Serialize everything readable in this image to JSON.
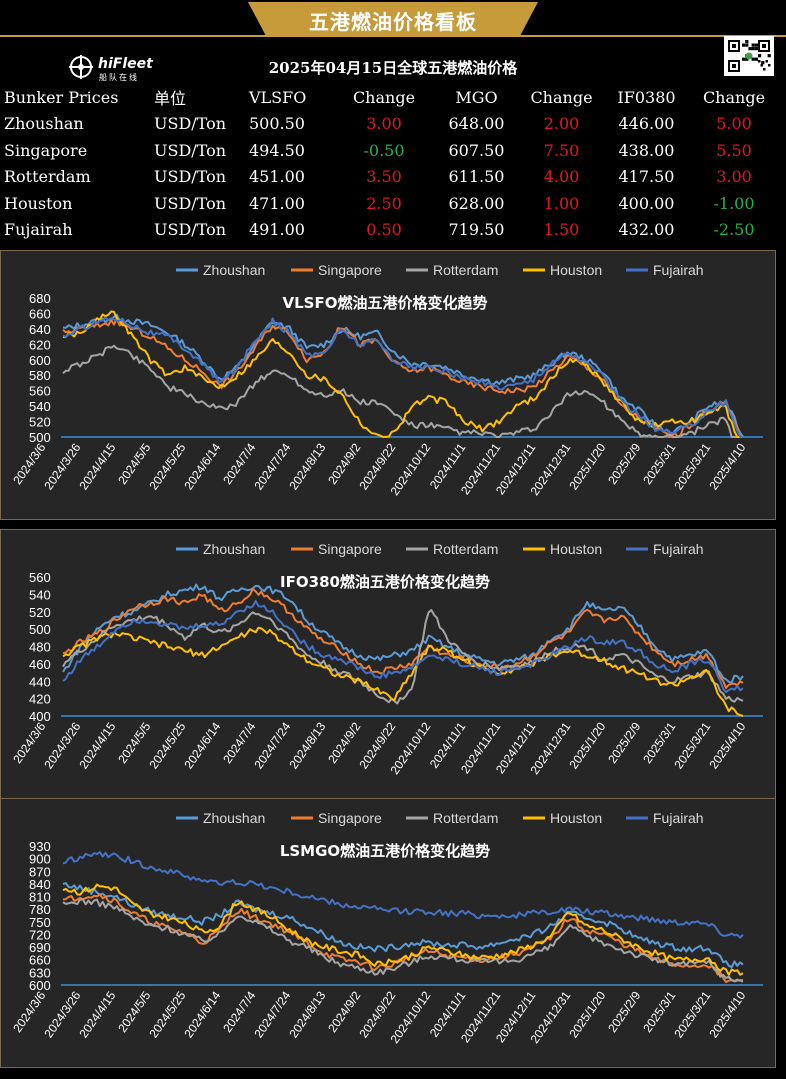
{
  "banner": {
    "title": "五港燃油价格看板",
    "color": "#c79a3a"
  },
  "logo": {
    "name": "hiFleet",
    "subname": "船队在线"
  },
  "subtitle": "2025年04月15日全球五港燃油价格",
  "table": {
    "headers": [
      "Bunker Prices",
      "单位",
      "VLSFO",
      "Change",
      "MGO",
      "Change",
      "IF0380",
      "Change"
    ],
    "rows": [
      {
        "port": "Zhoushan",
        "unit": "USD/Ton",
        "vlsfo": "500.50",
        "vlsfo_chg": "3.00",
        "mgo": "648.00",
        "mgo_chg": "2.00",
        "ifo": "446.00",
        "ifo_chg": "5.00"
      },
      {
        "port": "Singapore",
        "unit": "USD/Ton",
        "vlsfo": "494.50",
        "vlsfo_chg": "-0.50",
        "mgo": "607.50",
        "mgo_chg": "7.50",
        "ifo": "438.00",
        "ifo_chg": "5.50"
      },
      {
        "port": "Rotterdam",
        "unit": "USD/Ton",
        "vlsfo": "451.00",
        "vlsfo_chg": "3.50",
        "mgo": "611.50",
        "mgo_chg": "4.00",
        "ifo": "417.50",
        "ifo_chg": "3.00"
      },
      {
        "port": "Houston",
        "unit": "USD/Ton",
        "vlsfo": "471.00",
        "vlsfo_chg": "2.50",
        "mgo": "628.00",
        "mgo_chg": "1.00",
        "ifo": "400.00",
        "ifo_chg": "-1.00"
      },
      {
        "port": "Fujairah",
        "unit": "USD/Ton",
        "vlsfo": "491.00",
        "vlsfo_chg": "0.50",
        "mgo": "719.50",
        "mgo_chg": "1.50",
        "ifo": "432.00",
        "ifo_chg": "-2.50"
      }
    ],
    "colors": {
      "up": "#e8141d",
      "down": "#21b24b"
    }
  },
  "chart_data": [
    {
      "type": "line",
      "title": "VLSFO燃油五港价格变化趋势",
      "x_ticks": [
        "2024/3/6",
        "2024/3/26",
        "2024/4/15",
        "2024/5/5",
        "2024/5/25",
        "2024/6/14",
        "2024/7/4",
        "2024/7/24",
        "2024/8/13",
        "2024/9/2",
        "2024/9/22",
        "2024/10/12",
        "2024/11/1",
        "2024/11/21",
        "2024/12/11",
        "2024/12/31",
        "2025/1/20",
        "2025/2/9",
        "2025/3/1",
        "2025/3/21",
        "2025/4/10"
      ],
      "y_ticks": [
        500,
        520,
        540,
        560,
        580,
        600,
        620,
        640,
        660,
        680
      ],
      "ylim": [
        500,
        680
      ],
      "legend_position": "top",
      "series": [
        {
          "name": "Zhoushan",
          "color": "#5b9bd5",
          "values": [
            640,
            645,
            650,
            655,
            650,
            645,
            635,
            620,
            600,
            575,
            590,
            620,
            650,
            640,
            615,
            620,
            640,
            630,
            635,
            610,
            595,
            595,
            590,
            580,
            575,
            570,
            575,
            580,
            595,
            610,
            600,
            585,
            550,
            535,
            515,
            505,
            520,
            540,
            545,
            500.5
          ]
        },
        {
          "name": "Singapore",
          "color": "#ed7d31",
          "values": [
            635,
            640,
            645,
            650,
            640,
            630,
            615,
            600,
            585,
            565,
            585,
            615,
            645,
            635,
            600,
            610,
            645,
            620,
            625,
            595,
            585,
            590,
            580,
            570,
            565,
            560,
            560,
            565,
            585,
            605,
            590,
            575,
            540,
            525,
            510,
            500,
            515,
            535,
            545,
            494.5
          ]
        },
        {
          "name": "Rotterdam",
          "color": "#a5a5a5",
          "values": [
            585,
            595,
            605,
            620,
            605,
            590,
            565,
            555,
            545,
            535,
            545,
            570,
            585,
            580,
            560,
            555,
            560,
            545,
            545,
            530,
            515,
            515,
            510,
            505,
            505,
            500,
            505,
            510,
            530,
            555,
            560,
            545,
            520,
            505,
            500,
            500,
            505,
            515,
            525,
            451
          ]
        },
        {
          "name": "Houston",
          "color": "#ffc000",
          "values": [
            630,
            635,
            655,
            660,
            630,
            600,
            580,
            590,
            575,
            565,
            580,
            600,
            625,
            610,
            580,
            575,
            555,
            520,
            500,
            505,
            540,
            550,
            545,
            520,
            510,
            520,
            540,
            550,
            575,
            600,
            595,
            570,
            545,
            520,
            515,
            520,
            520,
            530,
            540,
            471
          ]
        },
        {
          "name": "Fujairah",
          "color": "#4472c4",
          "values": [
            630,
            640,
            650,
            655,
            645,
            635,
            630,
            615,
            595,
            570,
            590,
            625,
            650,
            635,
            605,
            610,
            640,
            620,
            625,
            600,
            590,
            590,
            585,
            575,
            570,
            565,
            568,
            575,
            595,
            610,
            595,
            580,
            545,
            530,
            510,
            505,
            515,
            535,
            545,
            491
          ]
        }
      ]
    },
    {
      "type": "line",
      "title": "IFO380燃油五港价格变化趋势",
      "x_ticks": [
        "2024/3/6",
        "2024/3/26",
        "2024/4/15",
        "2024/5/5",
        "2024/5/25",
        "2024/6/14",
        "2024/7/4",
        "2024/7/24",
        "2024/8/13",
        "2024/9/2",
        "2024/9/22",
        "2024/10/12",
        "2024/11/1",
        "2024/11/21",
        "2024/12/11",
        "2024/12/31",
        "2025/1/20",
        "2025/2/9",
        "2025/3/1",
        "2025/3/21",
        "2025/4/10"
      ],
      "y_ticks": [
        400,
        420,
        440,
        460,
        480,
        500,
        520,
        540,
        560
      ],
      "ylim": [
        400,
        560
      ],
      "legend_position": "top",
      "series": [
        {
          "name": "Zhoushan",
          "color": "#5b9bd5",
          "values": [
            450,
            480,
            500,
            515,
            520,
            530,
            540,
            545,
            550,
            535,
            545,
            550,
            545,
            535,
            510,
            495,
            480,
            470,
            465,
            470,
            475,
            490,
            480,
            470,
            465,
            460,
            465,
            470,
            490,
            500,
            530,
            520,
            525,
            505,
            480,
            465,
            470,
            475,
            440,
            446
          ]
        },
        {
          "name": "Singapore",
          "color": "#ed7d31",
          "values": [
            470,
            485,
            495,
            510,
            525,
            530,
            535,
            530,
            540,
            520,
            530,
            545,
            535,
            520,
            500,
            485,
            475,
            460,
            450,
            455,
            460,
            480,
            470,
            465,
            460,
            455,
            460,
            470,
            485,
            495,
            520,
            510,
            515,
            495,
            475,
            460,
            465,
            470,
            435,
            438
          ]
        },
        {
          "name": "Rotterdam",
          "color": "#a5a5a5",
          "values": [
            460,
            475,
            490,
            505,
            510,
            515,
            505,
            490,
            505,
            495,
            505,
            520,
            510,
            490,
            470,
            460,
            450,
            440,
            425,
            415,
            430,
            525,
            490,
            470,
            460,
            455,
            458,
            462,
            475,
            480,
            480,
            465,
            470,
            460,
            445,
            440,
            445,
            450,
            420,
            417.5
          ]
        },
        {
          "name": "Houston",
          "color": "#ffc000",
          "values": [
            470,
            480,
            490,
            495,
            490,
            485,
            480,
            475,
            470,
            480,
            490,
            500,
            495,
            480,
            465,
            455,
            445,
            440,
            430,
            420,
            450,
            480,
            475,
            465,
            455,
            450,
            455,
            460,
            470,
            475,
            470,
            465,
            455,
            450,
            440,
            435,
            445,
            450,
            410,
            400
          ]
        },
        {
          "name": "Fujairah",
          "color": "#4472c4",
          "values": [
            440,
            465,
            480,
            500,
            510,
            510,
            505,
            500,
            505,
            505,
            520,
            530,
            520,
            500,
            480,
            470,
            465,
            455,
            445,
            450,
            455,
            470,
            465,
            460,
            455,
            450,
            455,
            460,
            470,
            480,
            490,
            485,
            485,
            475,
            460,
            450,
            460,
            465,
            430,
            432
          ]
        }
      ]
    },
    {
      "type": "line",
      "title": "LSMGO燃油五港价格变化趋势",
      "x_ticks": [
        "2024/3/6",
        "2024/3/26",
        "2024/4/15",
        "2024/5/5",
        "2024/5/25",
        "2024/6/14",
        "2024/7/4",
        "2024/7/24",
        "2024/8/13",
        "2024/9/2",
        "2024/9/22",
        "2024/10/12",
        "2024/11/1",
        "2024/11/21",
        "2024/12/11",
        "2024/12/31",
        "2025/1/20",
        "2025/2/9",
        "2025/3/1",
        "2025/3/21",
        "2025/4/10"
      ],
      "y_ticks": [
        600,
        630,
        660,
        690,
        720,
        750,
        780,
        810,
        840,
        870,
        900,
        930
      ],
      "ylim": [
        600,
        930
      ],
      "legend_position": "top",
      "series": [
        {
          "name": "Zhoushan",
          "color": "#5b9bd5",
          "values": [
            840,
            830,
            820,
            810,
            790,
            775,
            765,
            760,
            750,
            765,
            795,
            780,
            770,
            760,
            740,
            720,
            700,
            690,
            685,
            690,
            700,
            700,
            695,
            695,
            690,
            700,
            710,
            720,
            740,
            770,
            760,
            750,
            735,
            710,
            700,
            690,
            685,
            690,
            650,
            648
          ]
        },
        {
          "name": "Singapore",
          "color": "#ed7d31",
          "values": [
            800,
            810,
            815,
            800,
            770,
            750,
            735,
            725,
            700,
            730,
            780,
            760,
            745,
            725,
            700,
            675,
            660,
            655,
            640,
            650,
            670,
            680,
            670,
            665,
            660,
            665,
            675,
            690,
            710,
            760,
            730,
            720,
            700,
            680,
            660,
            650,
            645,
            650,
            610,
            607.5
          ]
        },
        {
          "name": "Rotterdam",
          "color": "#a5a5a5",
          "values": [
            790,
            800,
            795,
            785,
            760,
            740,
            735,
            720,
            705,
            720,
            770,
            750,
            730,
            705,
            690,
            665,
            650,
            640,
            630,
            640,
            655,
            670,
            665,
            660,
            655,
            655,
            660,
            675,
            690,
            740,
            715,
            700,
            685,
            670,
            660,
            650,
            650,
            655,
            615,
            611.5
          ]
        },
        {
          "name": "Houston",
          "color": "#ffc000",
          "values": [
            830,
            820,
            835,
            830,
            790,
            770,
            760,
            745,
            725,
            740,
            800,
            780,
            760,
            730,
            705,
            690,
            680,
            670,
            650,
            655,
            670,
            690,
            680,
            670,
            665,
            670,
            680,
            695,
            715,
            775,
            740,
            730,
            710,
            690,
            675,
            660,
            660,
            665,
            630,
            628
          ]
        },
        {
          "name": "Fujairah",
          "color": "#4472c4",
          "values": [
            890,
            905,
            910,
            905,
            895,
            880,
            870,
            860,
            850,
            840,
            845,
            840,
            830,
            820,
            810,
            800,
            790,
            785,
            780,
            775,
            775,
            775,
            770,
            770,
            765,
            765,
            765,
            770,
            775,
            780,
            775,
            770,
            765,
            760,
            755,
            750,
            750,
            745,
            720,
            719.5
          ]
        }
      ]
    }
  ]
}
